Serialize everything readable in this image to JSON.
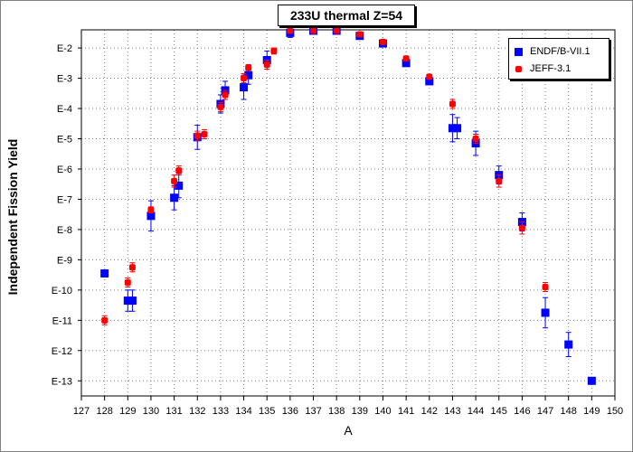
{
  "chart_data": {
    "type": "scatter",
    "title": "233U thermal Z=54",
    "xlabel": "A",
    "ylabel": "Independent Fission Yield",
    "xlim": [
      127,
      150
    ],
    "x_ticks": [
      "127",
      "128",
      "129",
      "130",
      "131",
      "132",
      "133",
      "134",
      "135",
      "136",
      "137",
      "138",
      "139",
      "140",
      "141",
      "142",
      "143",
      "144",
      "145",
      "146",
      "147",
      "148",
      "149",
      "150"
    ],
    "y_scale": "log",
    "ylim_exp": [
      -13.5,
      -1.4
    ],
    "y_ticks": [
      "E-2",
      "E-3",
      "E-4",
      "E-5",
      "E-6",
      "E-7",
      "E-8",
      "E-9",
      "E-10",
      "E-11",
      "E-12",
      "E-13"
    ],
    "grid": true,
    "legend_position": "top-right",
    "series": [
      {
        "name": "ENDF/B-VII.1",
        "color": "#0000ff",
        "marker": "square",
        "points": [
          {
            "x": 128,
            "y_exp": -9.45
          },
          {
            "x": 129,
            "y_exp": -10.35,
            "err": 0.35
          },
          {
            "x": 129.2,
            "y_exp": -10.35,
            "err": 0.35
          },
          {
            "x": 130,
            "y_exp": -7.55,
            "err": 0.5
          },
          {
            "x": 131,
            "y_exp": -6.95,
            "err": 0.4
          },
          {
            "x": 131.2,
            "y_exp": -6.55,
            "err": 0.4
          },
          {
            "x": 132,
            "y_exp": -4.95,
            "err": 0.4
          },
          {
            "x": 133,
            "y_exp": -3.85,
            "err": 0.3
          },
          {
            "x": 133.2,
            "y_exp": -3.4,
            "err": 0.3
          },
          {
            "x": 134,
            "y_exp": -3.3,
            "err": 0.4
          },
          {
            "x": 134.2,
            "y_exp": -2.9,
            "err": 0.3
          },
          {
            "x": 135,
            "y_exp": -2.4,
            "err": 0.3
          },
          {
            "x": 136,
            "y_exp": -1.5,
            "err": 0.15
          },
          {
            "x": 137,
            "y_exp": -1.43
          },
          {
            "x": 138,
            "y_exp": -1.43
          },
          {
            "x": 139,
            "y_exp": -1.6
          },
          {
            "x": 140,
            "y_exp": -1.85
          },
          {
            "x": 141,
            "y_exp": -2.5
          },
          {
            "x": 142,
            "y_exp": -3.1
          },
          {
            "x": 143,
            "y_exp": -4.65,
            "err": 0.45
          },
          {
            "x": 143.2,
            "y_exp": -4.65,
            "err": 0.35
          },
          {
            "x": 144,
            "y_exp": -5.15,
            "err": 0.4
          },
          {
            "x": 145,
            "y_exp": -6.2,
            "err": 0.3
          },
          {
            "x": 146,
            "y_exp": -7.75,
            "err": 0.3
          },
          {
            "x": 147,
            "y_exp": -10.75,
            "err": 0.5
          },
          {
            "x": 148,
            "y_exp": -11.8,
            "err": 0.4
          },
          {
            "x": 149,
            "y_exp": -13.0,
            "err": 0.1
          }
        ]
      },
      {
        "name": "JEFF-3.1",
        "color": "#ff0000",
        "marker": "circle",
        "points": [
          {
            "x": 128,
            "y_exp": -11.0,
            "err": 0.15
          },
          {
            "x": 129,
            "y_exp": -9.75,
            "err": 0.15
          },
          {
            "x": 129.2,
            "y_exp": -9.25,
            "err": 0.15
          },
          {
            "x": 130,
            "y_exp": -7.35,
            "err": 0.1
          },
          {
            "x": 131,
            "y_exp": -6.4,
            "err": 0.2
          },
          {
            "x": 131.2,
            "y_exp": -6.05,
            "err": 0.15
          },
          {
            "x": 132,
            "y_exp": -4.9,
            "err": 0.15
          },
          {
            "x": 132.3,
            "y_exp": -4.85,
            "err": 0.15
          },
          {
            "x": 133,
            "y_exp": -3.95,
            "err": 0.15
          },
          {
            "x": 133.2,
            "y_exp": -3.55,
            "err": 0.15
          },
          {
            "x": 134,
            "y_exp": -3.0,
            "err": 0.15
          },
          {
            "x": 134.2,
            "y_exp": -2.65,
            "err": 0.1
          },
          {
            "x": 135,
            "y_exp": -2.55,
            "err": 0.15
          },
          {
            "x": 135.3,
            "y_exp": -2.1,
            "err": 0.1
          },
          {
            "x": 136,
            "y_exp": -1.43
          },
          {
            "x": 137,
            "y_exp": -1.43
          },
          {
            "x": 138,
            "y_exp": -1.43
          },
          {
            "x": 139,
            "y_exp": -1.55
          },
          {
            "x": 140,
            "y_exp": -1.8
          },
          {
            "x": 141,
            "y_exp": -2.35
          },
          {
            "x": 142,
            "y_exp": -2.95
          },
          {
            "x": 143,
            "y_exp": -3.85,
            "err": 0.15
          },
          {
            "x": 144,
            "y_exp": -5.0,
            "err": 0.15
          },
          {
            "x": 145,
            "y_exp": -6.4,
            "err": 0.2
          },
          {
            "x": 146,
            "y_exp": -7.95,
            "err": 0.2
          },
          {
            "x": 147,
            "y_exp": -9.9,
            "err": 0.15
          }
        ]
      }
    ]
  }
}
